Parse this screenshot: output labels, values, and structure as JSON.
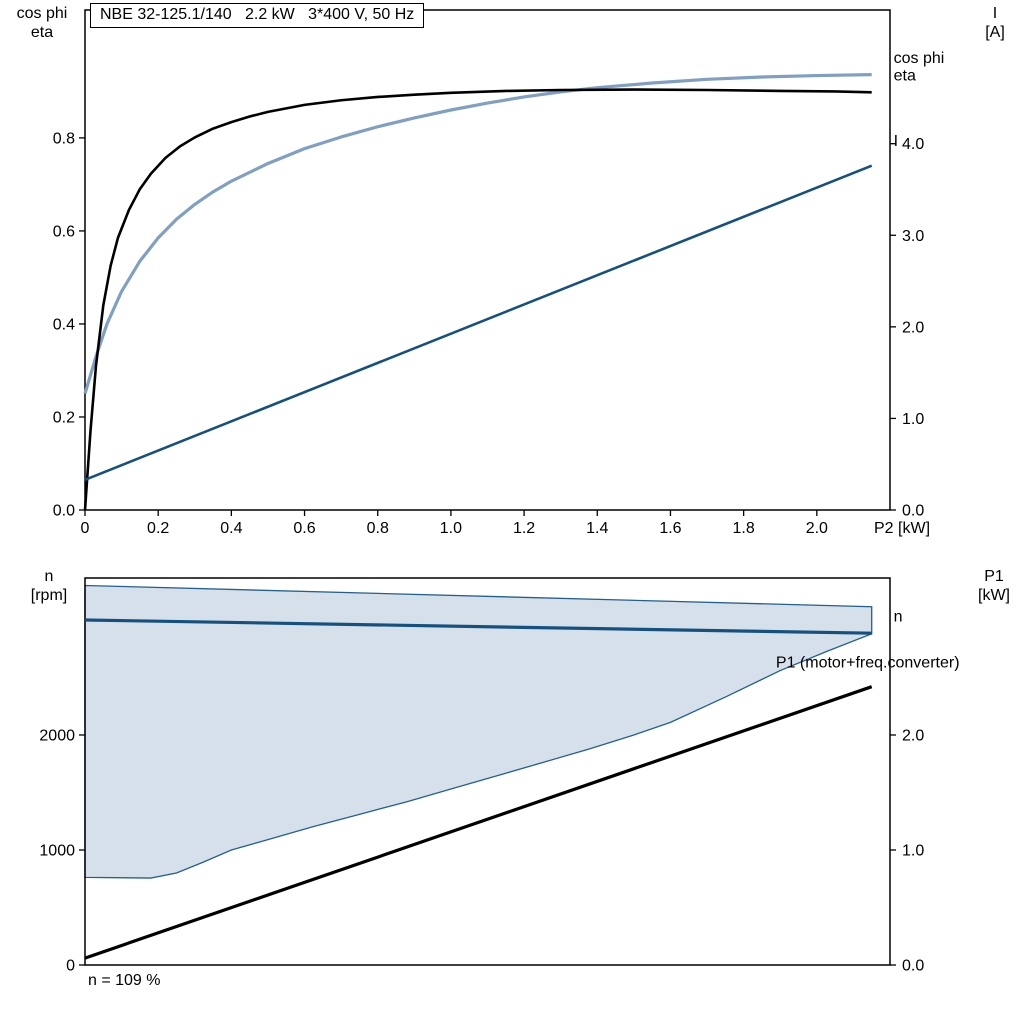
{
  "title_box": "NBE 32-125.1/140   2.2 kW   3*400 V, 50 Hz",
  "footnote": "n = 109 %",
  "axis_headers": {
    "top_left": [
      "cos phi",
      "eta"
    ],
    "top_right": [
      "I",
      "[A]"
    ],
    "bottom_left": [
      "n",
      "[rpm]"
    ],
    "bottom_right": [
      "P1",
      "[kW]"
    ]
  },
  "colors": {
    "cos_phi": "#7f9fc3",
    "eta": "#000000",
    "current": "#15517e",
    "speed": "#15517e",
    "p1": "#000000",
    "envelope_fill": "#d6e0ea",
    "envelope_stroke": "#23608f",
    "axis": "#000000"
  },
  "chart_data": [
    {
      "id": "top",
      "type": "line",
      "title": "NBE 32-125.1/140   2.2 kW   3*400 V, 50 Hz",
      "x_axis": {
        "label": "P2 [kW]",
        "min": 0,
        "max": 2.2,
        "tick_values": [
          0,
          0.2,
          0.4,
          0.6,
          0.8,
          1.0,
          1.2,
          1.4,
          1.6,
          1.8,
          2.0
        ],
        "tick_labels": [
          "0",
          "0.2",
          "0.4",
          "0.6",
          "0.8",
          "1.0",
          "1.2",
          "1.4",
          "1.6",
          "1.8",
          "2.0"
        ]
      },
      "y_left": {
        "label": "cos phi / eta",
        "min": 0,
        "max": 1.075,
        "tick_values": [
          0,
          0.2,
          0.4,
          0.6,
          0.8
        ],
        "tick_labels": [
          "0.0",
          "0.2",
          "0.4",
          "0.6",
          "0.8"
        ]
      },
      "y_right": {
        "label": "I [A]",
        "min": 0,
        "max": 5.46,
        "tick_values": [
          0,
          1,
          2,
          3,
          4
        ],
        "tick_labels": [
          "0.0",
          "1.0",
          "2.0",
          "3.0",
          "4.0"
        ]
      },
      "series": [
        {
          "id": "cos-phi",
          "name": "cos phi",
          "axis": "left",
          "color": "cos_phi",
          "width": 3.2,
          "x": [
            0,
            0.03,
            0.06,
            0.1,
            0.15,
            0.2,
            0.25,
            0.3,
            0.35,
            0.4,
            0.5,
            0.6,
            0.7,
            0.8,
            0.9,
            1.0,
            1.1,
            1.2,
            1.3,
            1.4,
            1.55,
            1.7,
            1.85,
            2.0,
            2.15
          ],
          "y": [
            0.25,
            0.33,
            0.4,
            0.47,
            0.535,
            0.585,
            0.625,
            0.657,
            0.684,
            0.707,
            0.745,
            0.777,
            0.802,
            0.824,
            0.843,
            0.86,
            0.875,
            0.888,
            0.899,
            0.908,
            0.918,
            0.926,
            0.931,
            0.934,
            0.936
          ]
        },
        {
          "id": "eta",
          "name": "eta",
          "axis": "left",
          "color": "eta",
          "width": 2.6,
          "x": [
            0,
            0.015,
            0.03,
            0.05,
            0.07,
            0.09,
            0.12,
            0.15,
            0.18,
            0.22,
            0.26,
            0.3,
            0.35,
            0.4,
            0.45,
            0.5,
            0.6,
            0.7,
            0.8,
            0.9,
            1.0,
            1.15,
            1.3,
            1.5,
            1.7,
            1.9,
            2.05,
            2.15
          ],
          "y": [
            0,
            0.17,
            0.31,
            0.44,
            0.525,
            0.585,
            0.645,
            0.69,
            0.723,
            0.757,
            0.782,
            0.801,
            0.82,
            0.834,
            0.846,
            0.856,
            0.871,
            0.881,
            0.888,
            0.893,
            0.897,
            0.901,
            0.903,
            0.904,
            0.903,
            0.901,
            0.9,
            0.898
          ]
        },
        {
          "id": "current",
          "name": "I",
          "axis": "right",
          "color": "current",
          "width": 2.6,
          "x": [
            0,
            2.15
          ],
          "y": [
            0.33,
            3.76
          ]
        }
      ],
      "annotations": [
        {
          "text": "cos phi",
          "x": 2.21,
          "y": 0.972,
          "axis": "left",
          "color": "cos_phi",
          "anchor": "start"
        },
        {
          "text": "eta",
          "x": 2.21,
          "y": 0.934,
          "axis": "left",
          "color": "eta",
          "anchor": "start"
        },
        {
          "text": "I",
          "x": 2.21,
          "y": 4.03,
          "axis": "right",
          "color": "current",
          "anchor": "start"
        }
      ]
    },
    {
      "id": "bottom",
      "type": "line",
      "title": "",
      "x_axis": {
        "label": "",
        "min": 0,
        "max": 2.2,
        "tick_values": [],
        "tick_labels": []
      },
      "y_left": {
        "label": "n [rpm]",
        "min": 0,
        "max": 3365,
        "tick_values": [
          0,
          1000,
          2000
        ],
        "tick_labels": [
          "0",
          "1000",
          "2000"
        ]
      },
      "y_right": {
        "label": "P1 [kW]",
        "min": 0,
        "max": 3.365,
        "tick_values": [
          0,
          1,
          2
        ],
        "tick_labels": [
          "0.0",
          "1.0",
          "2.0"
        ]
      },
      "envelope": {
        "name": "speed operating range",
        "upper_x": [
          0,
          2.15
        ],
        "upper_y": [
          3300,
          3115
        ],
        "lower_x": [
          0,
          0.18,
          0.25,
          0.32,
          0.4,
          0.5,
          0.62,
          0.75,
          0.88,
          1.0,
          1.12,
          1.25,
          1.38,
          1.5,
          1.6,
          1.75,
          1.9,
          2.03,
          2.15
        ],
        "lower_y": [
          762,
          756,
          800,
          890,
          1000,
          1090,
          1200,
          1310,
          1420,
          1530,
          1640,
          1760,
          1880,
          2000,
          2110,
          2330,
          2560,
          2730,
          2880
        ]
      },
      "series": [
        {
          "id": "speed",
          "name": "n",
          "axis": "left",
          "color": "speed",
          "width": 3.2,
          "x": [
            0,
            2.15
          ],
          "y": [
            3000,
            2885
          ]
        },
        {
          "id": "p1",
          "name": "P1 (motor+freq.converter)",
          "axis": "right",
          "color": "p1",
          "width": 3.2,
          "x": [
            0,
            2.15
          ],
          "y": [
            0.06,
            2.42
          ]
        }
      ],
      "annotations": [
        {
          "text": "n",
          "x": 2.21,
          "y": 3030,
          "axis": "left",
          "color": "speed",
          "anchor": "start"
        },
        {
          "text": "P1 (motor+freq.converter)",
          "x": 2.39,
          "y": 2.63,
          "axis": "right",
          "color": "p1",
          "anchor": "end"
        }
      ]
    }
  ]
}
